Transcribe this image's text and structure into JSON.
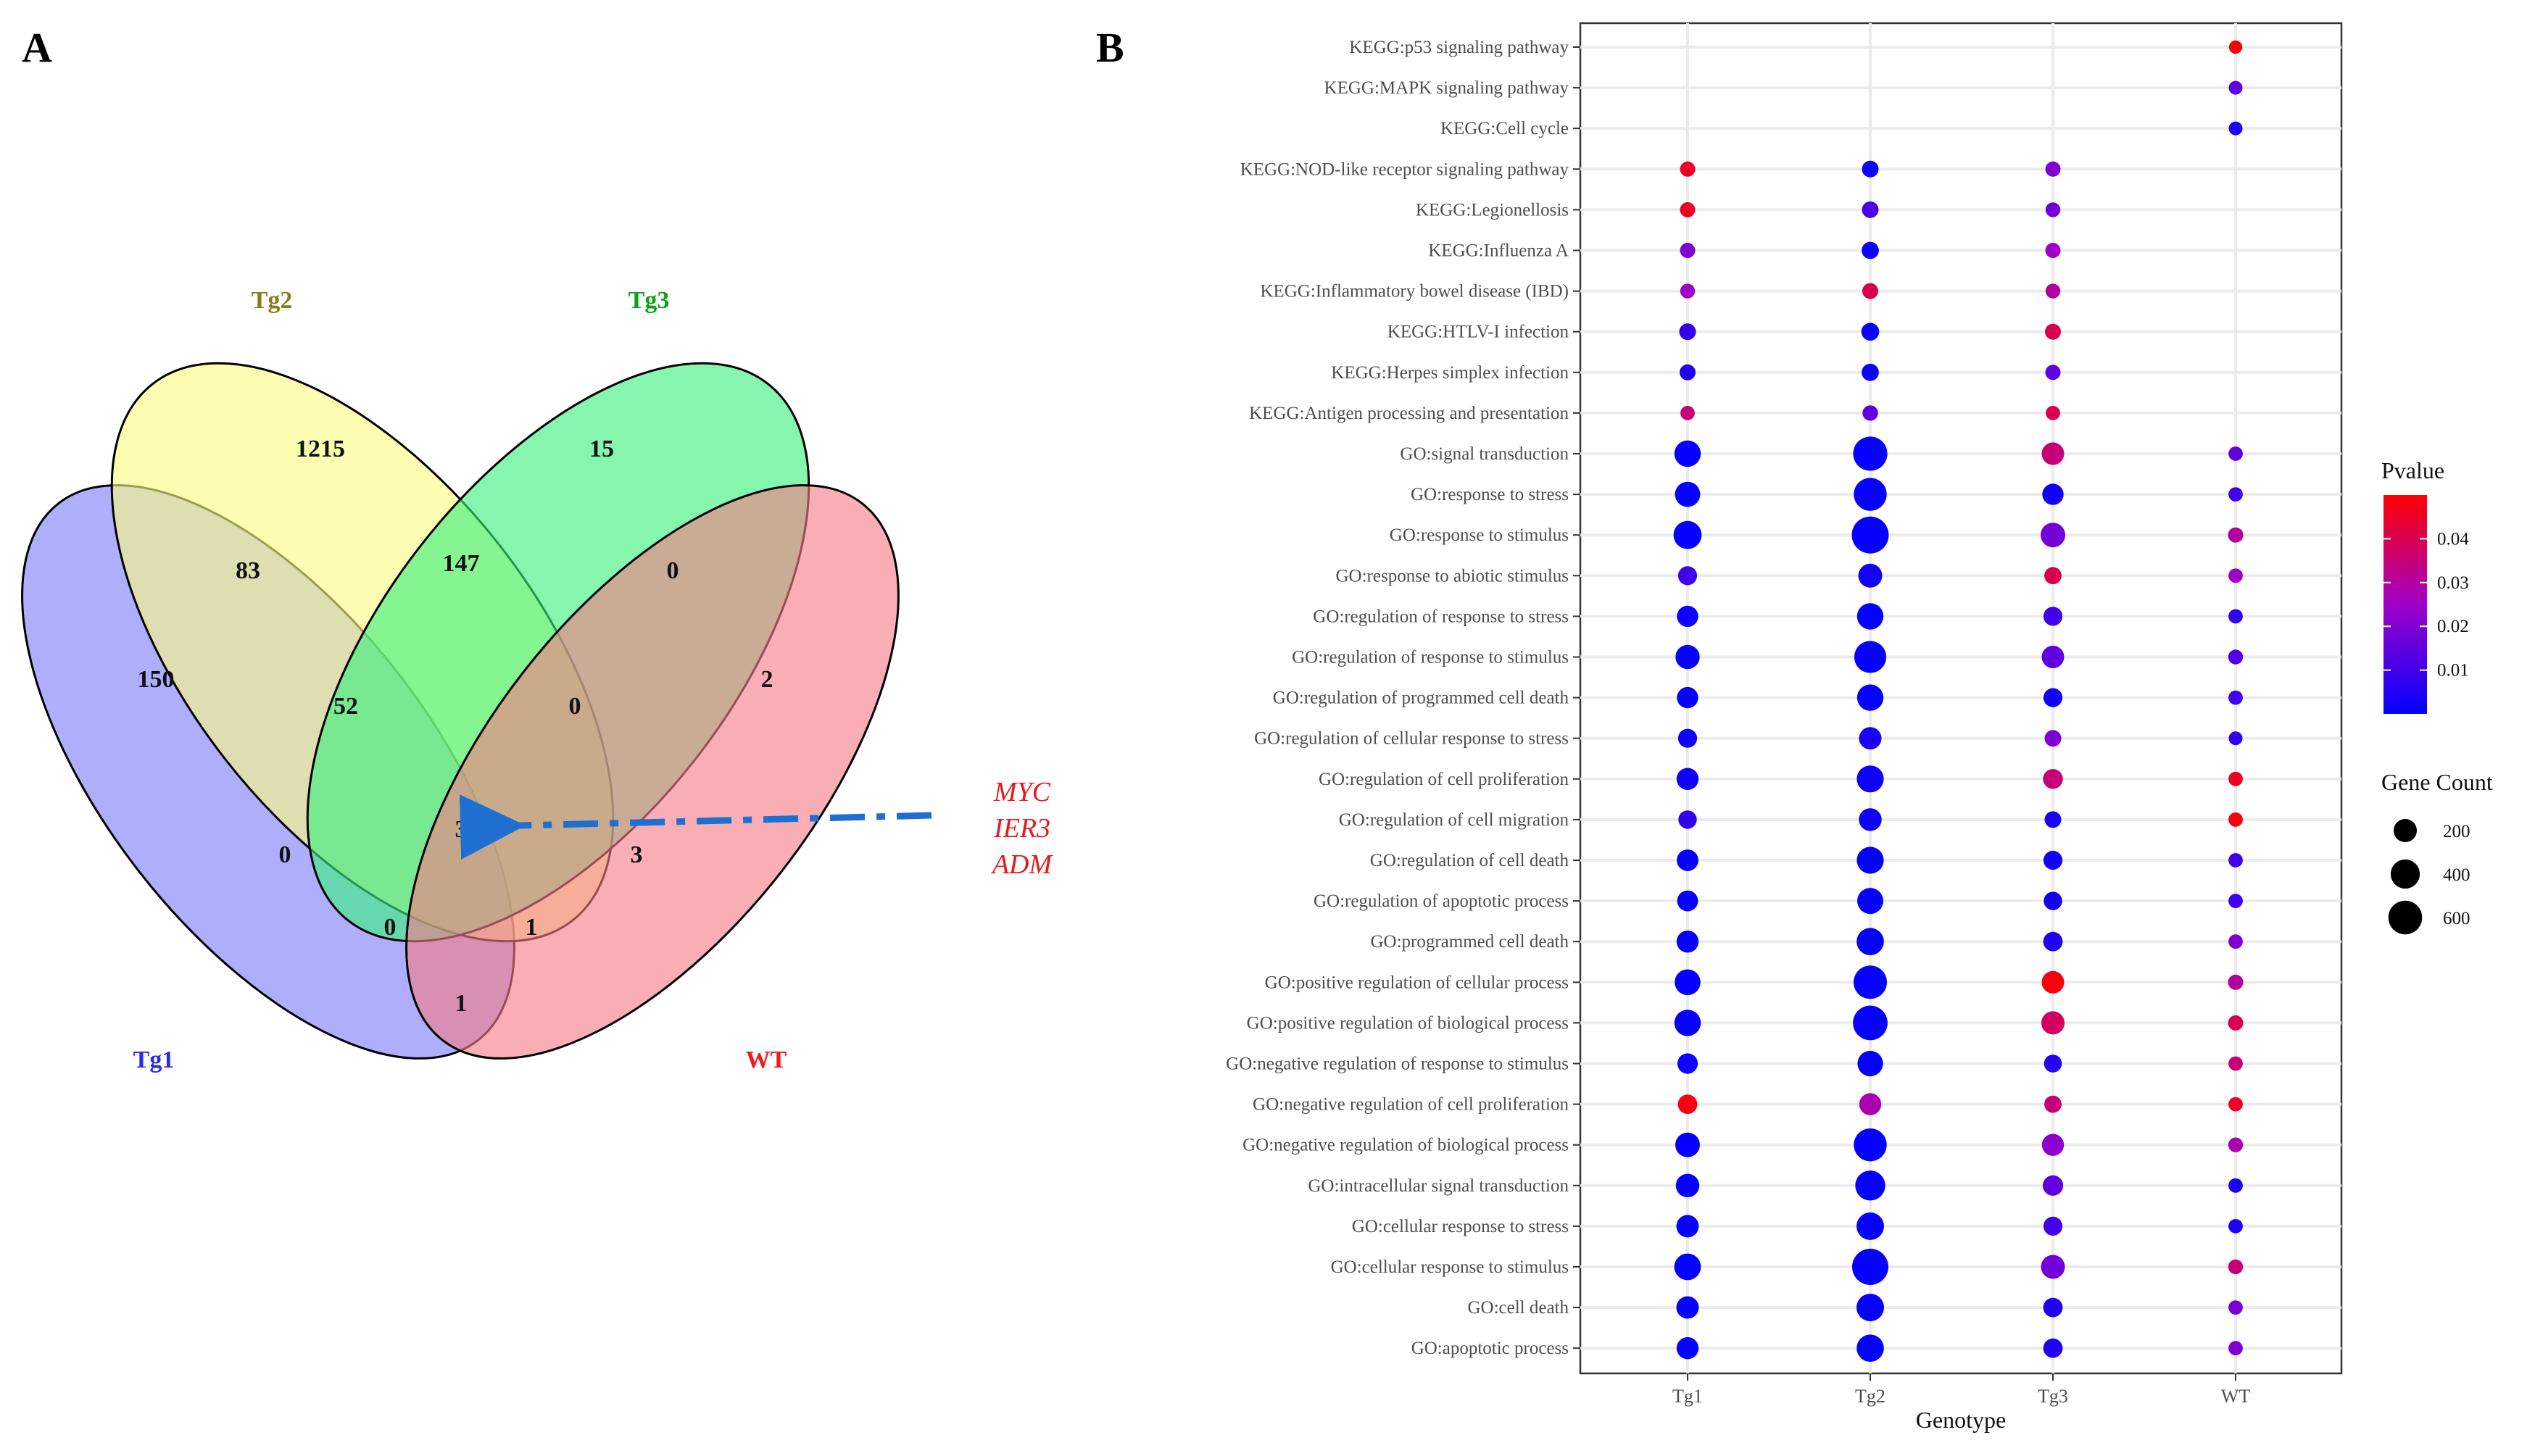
{
  "panels": {
    "venn_letter": "A",
    "dot_letter": "B"
  },
  "venn": {
    "sets": [
      {
        "name": "Tg1",
        "color": "#7d7dfa"
      },
      {
        "name": "Tg2",
        "color": "#fbfb82"
      },
      {
        "name": "Tg3",
        "color": "#3cf07e"
      },
      {
        "name": "WT",
        "color": "#f47d86"
      }
    ],
    "label_colors": {
      "Tg1": "#2b2bf0",
      "Tg2": "#8a7a18",
      "Tg3": "#10a020",
      "WT": "#f01a1a"
    },
    "regions": [
      {
        "sets": "Tg1",
        "count": "150"
      },
      {
        "sets": "Tg2",
        "count": "1215"
      },
      {
        "sets": "Tg3",
        "count": "15"
      },
      {
        "sets": "WT",
        "count": "2"
      },
      {
        "sets": "Tg1&Tg2",
        "count": "83"
      },
      {
        "sets": "Tg2&Tg3",
        "count": "147"
      },
      {
        "sets": "Tg3&WT",
        "count": "0"
      },
      {
        "sets": "Tg1&Tg2&Tg3",
        "count": "52"
      },
      {
        "sets": "Tg2&Tg3&WT",
        "count": "0"
      },
      {
        "sets": "Tg1&Tg2&Tg3&WT",
        "count": "3"
      },
      {
        "sets": "Tg1&Tg3",
        "count": "0"
      },
      {
        "sets": "Tg2&WT",
        "count": "3"
      },
      {
        "sets": "Tg1&Tg3&WT",
        "count": "0"
      },
      {
        "sets": "Tg1&Tg2&WT",
        "count": "1"
      },
      {
        "sets": "Tg1&WT",
        "count": "1"
      }
    ],
    "highlight_genes": [
      "MYC",
      "IER3",
      "ADM"
    ],
    "arrow_color": "#1f6fd1"
  },
  "chart_data": {
    "type": "scatter",
    "subtype": "dot-plot",
    "xlabel": "Genotype",
    "ylabel": "",
    "x_categories": [
      "Tg1",
      "Tg2",
      "Tg3",
      "WT"
    ],
    "y_categories": [
      "KEGG:p53 signaling pathway",
      "KEGG:MAPK signaling pathway",
      "KEGG:Cell cycle",
      "KEGG:NOD-like receptor signaling pathway",
      "KEGG:Legionellosis",
      "KEGG:Influenza A",
      "KEGG:Inflammatory bowel disease (IBD)",
      "KEGG:HTLV-I infection",
      "KEGG:Herpes simplex infection",
      "KEGG:Antigen processing and presentation",
      "GO:signal transduction",
      "GO:response to stress",
      "GO:response to stimulus",
      "GO:response to abiotic stimulus",
      "GO:regulation of response to stress",
      "GO:regulation of response to stimulus",
      "GO:regulation of programmed cell death",
      "GO:regulation of cellular response to stress",
      "GO:regulation of cell proliferation",
      "GO:regulation of cell migration",
      "GO:regulation of cell death",
      "GO:regulation of apoptotic process",
      "GO:programmed cell death",
      "GO:positive regulation of cellular process",
      "GO:positive regulation of biological process",
      "GO:negative regulation of response to stimulus",
      "GO:negative regulation of cell proliferation",
      "GO:negative regulation of biological process",
      "GO:intracellular signal transduction",
      "GO:cellular response to stress",
      "GO:cellular response to stimulus",
      "GO:cell death",
      "GO:apoptotic process"
    ],
    "points": [
      [
        "KEGG:p53 signaling pathway",
        "WT",
        0.048,
        20
      ],
      [
        "KEGG:MAPK signaling pathway",
        "WT",
        0.015,
        25
      ],
      [
        "KEGG:Cell cycle",
        "WT",
        0.005,
        25
      ],
      [
        "KEGG:NOD-like receptor signaling pathway",
        "Tg1",
        0.045,
        40
      ],
      [
        "KEGG:NOD-like receptor signaling pathway",
        "Tg2",
        0.002,
        60
      ],
      [
        "KEGG:NOD-like receptor signaling pathway",
        "Tg3",
        0.02,
        40
      ],
      [
        "KEGG:Legionellosis",
        "Tg1",
        0.045,
        40
      ],
      [
        "KEGG:Legionellosis",
        "Tg2",
        0.012,
        60
      ],
      [
        "KEGG:Legionellosis",
        "Tg3",
        0.018,
        35
      ],
      [
        "KEGG:Influenza A",
        "Tg1",
        0.02,
        40
      ],
      [
        "KEGG:Influenza A",
        "Tg2",
        0.002,
        70
      ],
      [
        "KEGG:Influenza A",
        "Tg3",
        0.025,
        40
      ],
      [
        "KEGG:Inflammatory bowel disease (IBD)",
        "Tg1",
        0.025,
        35
      ],
      [
        "KEGG:Inflammatory bowel disease (IBD)",
        "Tg2",
        0.04,
        50
      ],
      [
        "KEGG:Inflammatory bowel disease (IBD)",
        "Tg3",
        0.03,
        35
      ],
      [
        "KEGG:HTLV-I infection",
        "Tg1",
        0.008,
        60
      ],
      [
        "KEGG:HTLV-I infection",
        "Tg2",
        0.002,
        80
      ],
      [
        "KEGG:HTLV-I infection",
        "Tg3",
        0.04,
        50
      ],
      [
        "KEGG:Herpes simplex infection",
        "Tg1",
        0.005,
        50
      ],
      [
        "KEGG:Herpes simplex infection",
        "Tg2",
        0.002,
        70
      ],
      [
        "KEGG:Herpes simplex infection",
        "Tg3",
        0.015,
        40
      ],
      [
        "KEGG:Antigen processing and presentation",
        "Tg1",
        0.035,
        30
      ],
      [
        "KEGG:Antigen processing and presentation",
        "Tg2",
        0.015,
        45
      ],
      [
        "KEGG:Antigen processing and presentation",
        "Tg3",
        0.04,
        30
      ],
      [
        "GO:signal transduction",
        "Tg1",
        0.001,
        300
      ],
      [
        "GO:signal transduction",
        "Tg2",
        0.001,
        620
      ],
      [
        "GO:signal transduction",
        "Tg3",
        0.035,
        180
      ],
      [
        "GO:signal transduction",
        "WT",
        0.015,
        30
      ],
      [
        "GO:response to stress",
        "Tg1",
        0.001,
        260
      ],
      [
        "GO:response to stress",
        "Tg2",
        0.001,
        560
      ],
      [
        "GO:response to stress",
        "Tg3",
        0.003,
        150
      ],
      [
        "GO:response to stress",
        "WT",
        0.01,
        30
      ],
      [
        "GO:response to stimulus",
        "Tg1",
        0.001,
        360
      ],
      [
        "GO:response to stimulus",
        "Tg2",
        0.001,
        760
      ],
      [
        "GO:response to stimulus",
        "Tg3",
        0.018,
        240
      ],
      [
        "GO:response to stimulus",
        "WT",
        0.03,
        40
      ],
      [
        "GO:response to abiotic stimulus",
        "Tg1",
        0.01,
        100
      ],
      [
        "GO:response to abiotic stimulus",
        "Tg2",
        0.003,
        220
      ],
      [
        "GO:response to abiotic stimulus",
        "Tg3",
        0.04,
        70
      ],
      [
        "GO:response to abiotic stimulus",
        "WT",
        0.025,
        30
      ],
      [
        "GO:regulation of response to stress",
        "Tg1",
        0.002,
        150
      ],
      [
        "GO:regulation of response to stress",
        "Tg2",
        0.001,
        300
      ],
      [
        "GO:regulation of response to stress",
        "Tg3",
        0.01,
        100
      ],
      [
        "GO:regulation of response to stress",
        "WT",
        0.008,
        30
      ],
      [
        "GO:regulation of response to stimulus",
        "Tg1",
        0.001,
        230
      ],
      [
        "GO:regulation of response to stimulus",
        "Tg2",
        0.001,
        520
      ],
      [
        "GO:regulation of response to stimulus",
        "Tg3",
        0.015,
        180
      ],
      [
        "GO:regulation of response to stimulus",
        "WT",
        0.012,
        35
      ],
      [
        "GO:regulation of programmed cell death",
        "Tg1",
        0.001,
        150
      ],
      [
        "GO:regulation of programmed cell death",
        "Tg2",
        0.001,
        300
      ],
      [
        "GO:regulation of programmed cell death",
        "Tg3",
        0.003,
        100
      ],
      [
        "GO:regulation of programmed cell death",
        "WT",
        0.01,
        30
      ],
      [
        "GO:regulation of cellular response to stress",
        "Tg1",
        0.002,
        100
      ],
      [
        "GO:regulation of cellular response to stress",
        "Tg2",
        0.004,
        180
      ],
      [
        "GO:regulation of cellular response to stress",
        "Tg3",
        0.02,
        60
      ],
      [
        "GO:regulation of cellular response to stress",
        "WT",
        0.008,
        25
      ],
      [
        "GO:regulation of cell proliferation",
        "Tg1",
        0.002,
        170
      ],
      [
        "GO:regulation of cell proliferation",
        "Tg2",
        0.002,
        320
      ],
      [
        "GO:regulation of cell proliferation",
        "Tg3",
        0.035,
        120
      ],
      [
        "GO:regulation of cell proliferation",
        "WT",
        0.045,
        30
      ],
      [
        "GO:regulation of cell migration",
        "Tg1",
        0.008,
        90
      ],
      [
        "GO:regulation of cell migration",
        "Tg2",
        0.002,
        190
      ],
      [
        "GO:regulation of cell migration",
        "Tg3",
        0.004,
        60
      ],
      [
        "GO:regulation of cell migration",
        "WT",
        0.048,
        30
      ],
      [
        "GO:regulation of cell death",
        "Tg1",
        0.001,
        160
      ],
      [
        "GO:regulation of cell death",
        "Tg2",
        0.001,
        320
      ],
      [
        "GO:regulation of cell death",
        "Tg3",
        0.003,
        100
      ],
      [
        "GO:regulation of cell death",
        "WT",
        0.01,
        30
      ],
      [
        "GO:regulation of apoptotic process",
        "Tg1",
        0.001,
        140
      ],
      [
        "GO:regulation of apoptotic process",
        "Tg2",
        0.001,
        290
      ],
      [
        "GO:regulation of apoptotic process",
        "Tg3",
        0.003,
        90
      ],
      [
        "GO:regulation of apoptotic process",
        "WT",
        0.01,
        30
      ],
      [
        "GO:programmed cell death",
        "Tg1",
        0.001,
        170
      ],
      [
        "GO:programmed cell death",
        "Tg2",
        0.001,
        330
      ],
      [
        "GO:programmed cell death",
        "Tg3",
        0.005,
        110
      ],
      [
        "GO:programmed cell death",
        "WT",
        0.02,
        30
      ],
      [
        "GO:positive regulation of cellular process",
        "Tg1",
        0.001,
        280
      ],
      [
        "GO:positive regulation of cellular process",
        "Tg2",
        0.001,
        580
      ],
      [
        "GO:positive regulation of cellular process",
        "Tg3",
        0.048,
        180
      ],
      [
        "GO:positive regulation of cellular process",
        "WT",
        0.03,
        40
      ],
      [
        "GO:positive regulation of biological process",
        "Tg1",
        0.001,
        300
      ],
      [
        "GO:positive regulation of biological process",
        "Tg2",
        0.001,
        640
      ],
      [
        "GO:positive regulation of biological process",
        "Tg3",
        0.038,
        200
      ],
      [
        "GO:positive regulation of biological process",
        "WT",
        0.04,
        40
      ],
      [
        "GO:negative regulation of response to stimulus",
        "Tg1",
        0.002,
        130
      ],
      [
        "GO:negative regulation of response to stimulus",
        "Tg2",
        0.001,
        270
      ],
      [
        "GO:negative regulation of response to stimulus",
        "Tg3",
        0.006,
        80
      ],
      [
        "GO:negative regulation of response to stimulus",
        "WT",
        0.035,
        30
      ],
      [
        "GO:negative regulation of cell proliferation",
        "Tg1",
        0.048,
        110
      ],
      [
        "GO:negative regulation of cell proliferation",
        "Tg2",
        0.028,
        170
      ],
      [
        "GO:negative regulation of cell proliferation",
        "Tg3",
        0.035,
        70
      ],
      [
        "GO:negative regulation of cell proliferation",
        "WT",
        0.045,
        30
      ],
      [
        "GO:negative regulation of biological process",
        "Tg1",
        0.001,
        240
      ],
      [
        "GO:negative regulation of biological process",
        "Tg2",
        0.001,
        560
      ],
      [
        "GO:negative regulation of biological process",
        "Tg3",
        0.022,
        170
      ],
      [
        "GO:negative regulation of biological process",
        "WT",
        0.028,
        35
      ],
      [
        "GO:intracellular signal transduction",
        "Tg1",
        0.001,
        210
      ],
      [
        "GO:intracellular signal transduction",
        "Tg2",
        0.001,
        430
      ],
      [
        "GO:intracellular signal transduction",
        "Tg3",
        0.015,
        130
      ],
      [
        "GO:intracellular signal transduction",
        "WT",
        0.004,
        30
      ],
      [
        "GO:cellular response to stress",
        "Tg1",
        0.001,
        180
      ],
      [
        "GO:cellular response to stress",
        "Tg2",
        0.001,
        340
      ],
      [
        "GO:cellular response to stress",
        "Tg3",
        0.01,
        100
      ],
      [
        "GO:cellular response to stress",
        "WT",
        0.005,
        30
      ],
      [
        "GO:cellular response to stimulus",
        "Tg1",
        0.001,
        310
      ],
      [
        "GO:cellular response to stimulus",
        "Tg2",
        0.001,
        720
      ],
      [
        "GO:cellular response to stimulus",
        "Tg3",
        0.018,
        220
      ],
      [
        "GO:cellular response to stimulus",
        "WT",
        0.035,
        35
      ],
      [
        "GO:cell death",
        "Tg1",
        0.001,
        180
      ],
      [
        "GO:cell death",
        "Tg2",
        0.001,
        340
      ],
      [
        "GO:cell death",
        "Tg3",
        0.005,
        110
      ],
      [
        "GO:cell death",
        "WT",
        0.02,
        30
      ],
      [
        "GO:apoptotic process",
        "Tg1",
        0.001,
        170
      ],
      [
        "GO:apoptotic process",
        "Tg2",
        0.001,
        330
      ],
      [
        "GO:apoptotic process",
        "Tg3",
        0.005,
        110
      ],
      [
        "GO:apoptotic process",
        "WT",
        0.02,
        30
      ]
    ],
    "point_fields": [
      "term",
      "genotype",
      "pvalue",
      "gene_count"
    ],
    "color_scale": {
      "title": "Pvalue",
      "low_color": "#0000ff",
      "mid_color": "#a000c8",
      "high_color": "#ff0000",
      "min": 0.0,
      "max": 0.05,
      "ticks": [
        "0.04",
        "0.03",
        "0.02",
        "0.01"
      ]
    },
    "size_scale": {
      "title": "Gene Count",
      "max": 800,
      "ticks": [
        "200",
        "400",
        "600"
      ]
    },
    "grid": true,
    "legend_position": "right"
  }
}
